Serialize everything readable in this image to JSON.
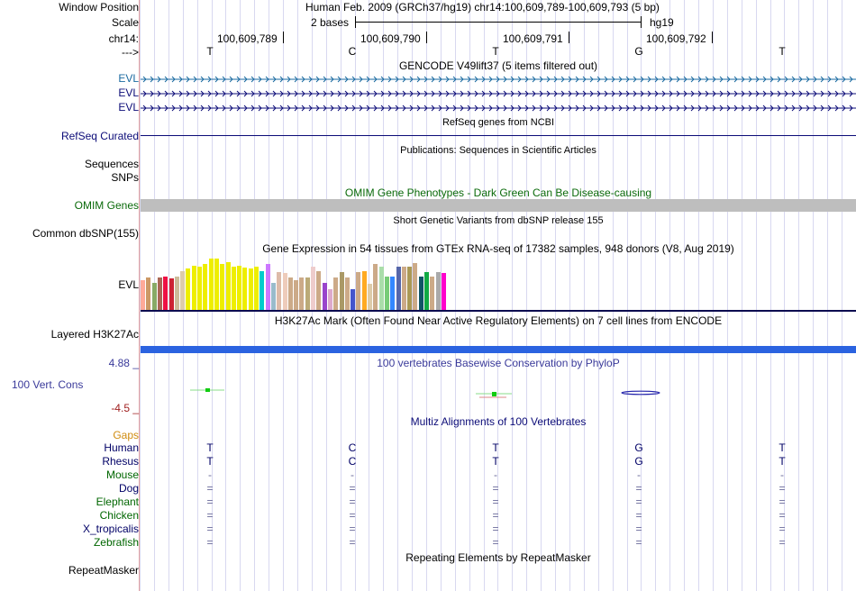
{
  "header": {
    "window_position_label": "Window Position",
    "window_position_value": "Human Feb. 2009 (GRCh37/hg19)   chr14:100,609,789-100,609,793 (5 bp)",
    "scale_label": "Scale",
    "scale_value": "2 bases",
    "scale_db": "hg19",
    "chrom_label": "chr14:",
    "positions": [
      "100,609,789",
      "100,609,790",
      "100,609,791",
      "100,609,792"
    ],
    "strand_label": "--->",
    "bases": [
      "T",
      "C",
      "T",
      "G",
      "T"
    ]
  },
  "tracks": {
    "gencode": {
      "title": "GENCODE V49lift37 (5 items filtered out)",
      "items": [
        "EVL",
        "EVL",
        "EVL"
      ]
    },
    "refseq": {
      "title": "RefSeq genes from NCBI",
      "label": "RefSeq Curated"
    },
    "publications": {
      "title": "Publications: Sequences in Scientific Articles",
      "label1": "Sequences",
      "label2": "SNPs"
    },
    "omim": {
      "title": "OMIM Gene Phenotypes - Dark Green Can Be Disease-causing",
      "label": "OMIM Genes"
    },
    "dbsnp": {
      "title": "Short Genetic Variants from dbSNP release 155",
      "label": "Common dbSNP(155)"
    },
    "gtex": {
      "title": "Gene Expression in 54 tissues from GTEx RNA-seq of 17382 samples, 948 donors (V8, Aug 2019)",
      "label": "EVL",
      "bar_values": [
        0.55,
        0.6,
        0.5,
        0.6,
        0.62,
        0.58,
        0.62,
        0.72,
        0.76,
        0.82,
        0.8,
        0.85,
        0.95,
        0.95,
        0.85,
        0.88,
        0.8,
        0.82,
        0.78,
        0.76,
        0.8,
        0.72,
        0.85,
        0.5,
        0.7,
        0.68,
        0.6,
        0.55,
        0.6,
        0.6,
        0.8,
        0.72,
        0.5,
        0.38,
        0.6,
        0.7,
        0.6,
        0.38,
        0.7,
        0.72,
        0.48,
        0.85,
        0.8,
        0.62,
        0.62,
        0.8,
        0.8,
        0.8,
        0.86,
        0.62,
        0.7,
        0.62,
        0.7,
        0.68
      ],
      "bar_colors": [
        "#ffaa99",
        "#cc9966",
        "#88aa66",
        "#aa6655",
        "#ee1144",
        "#cc2233",
        "#ccbb99",
        "#ddccaa",
        "#eeee00",
        "#eeee00",
        "#eeee00",
        "#eeee00",
        "#eeee00",
        "#eeee00",
        "#eeee00",
        "#eeee00",
        "#eeee00",
        "#eeee00",
        "#eeee00",
        "#eeee00",
        "#eeee00",
        "#00cccc",
        "#cc77ff",
        "#99bbcc",
        "#ddbbaa",
        "#eeccbb",
        "#ccaa88",
        "#ccaa88",
        "#ccaa88",
        "#bbaa77",
        "#eecccc",
        "#ccaa88",
        "#9944cc",
        "#ddaacc",
        "#ccaa88",
        "#aa9966",
        "#ccaa88",
        "#4455cc",
        "#ccaa88",
        "#ffaa22",
        "#ddccaa",
        "#ccaa88",
        "#aaddaa",
        "#77cc77",
        "#3388ff",
        "#5566aa",
        "#ccaa88",
        "#aa9955",
        "#ccaa88",
        "#115566",
        "#11aa44",
        "#ccaa88",
        "#aaaaaa",
        "#ff00cc"
      ]
    },
    "h3k27ac": {
      "title": "H3K27Ac Mark (Often Found Near Active Regulatory Elements) on 7 cell lines from ENCODE",
      "label": "Layered H3K27Ac"
    },
    "phylop": {
      "title": "100 vertebrates Basewise Conservation by PhyloP",
      "label": "100 Vert. Cons",
      "ymax": "4.88 _",
      "ymin": "-4.5 _"
    },
    "multiz": {
      "title": "Multiz Alignments of 100 Vertebrates",
      "gaps_label": "Gaps",
      "species": [
        {
          "name": "Human",
          "color": "#000066",
          "bases": [
            "T",
            "C",
            "T",
            "G",
            "T"
          ]
        },
        {
          "name": "Rhesus",
          "color": "#000066",
          "bases": [
            "T",
            "C",
            "T",
            "G",
            "T"
          ]
        },
        {
          "name": "Mouse",
          "color": "#006600",
          "bases": [
            "-",
            "-",
            "-",
            "-",
            "-"
          ]
        },
        {
          "name": "Dog",
          "color": "#000066",
          "bases": [
            "=",
            "=",
            "=",
            "=",
            "="
          ]
        },
        {
          "name": "Elephant",
          "color": "#006600",
          "bases": [
            "=",
            "=",
            "=",
            "=",
            "="
          ]
        },
        {
          "name": "Chicken",
          "color": "#006600",
          "bases": [
            "=",
            "=",
            "=",
            "=",
            "="
          ]
        },
        {
          "name": "X_tropicalis",
          "color": "#000066",
          "bases": [
            "=",
            "=",
            "=",
            "=",
            "="
          ]
        },
        {
          "name": "Zebrafish",
          "color": "#006600",
          "bases": [
            "=",
            "=",
            "=",
            "=",
            "="
          ]
        }
      ]
    },
    "repeatmasker": {
      "title": "Repeating Elements by RepeatMasker",
      "label": "RepeatMasker"
    }
  },
  "colors": {
    "gencode": "#0c0c78",
    "gencode_first": "#1a6aa0",
    "refseq": "#0c0c78",
    "omim_bar": "#bebebe",
    "omim_text": "#0a6a0a",
    "h3k27ac": "#2b63e0",
    "phylop_text": "#3a3a9a",
    "phylop_min": "#a02020",
    "gaps": "#d08c10"
  }
}
